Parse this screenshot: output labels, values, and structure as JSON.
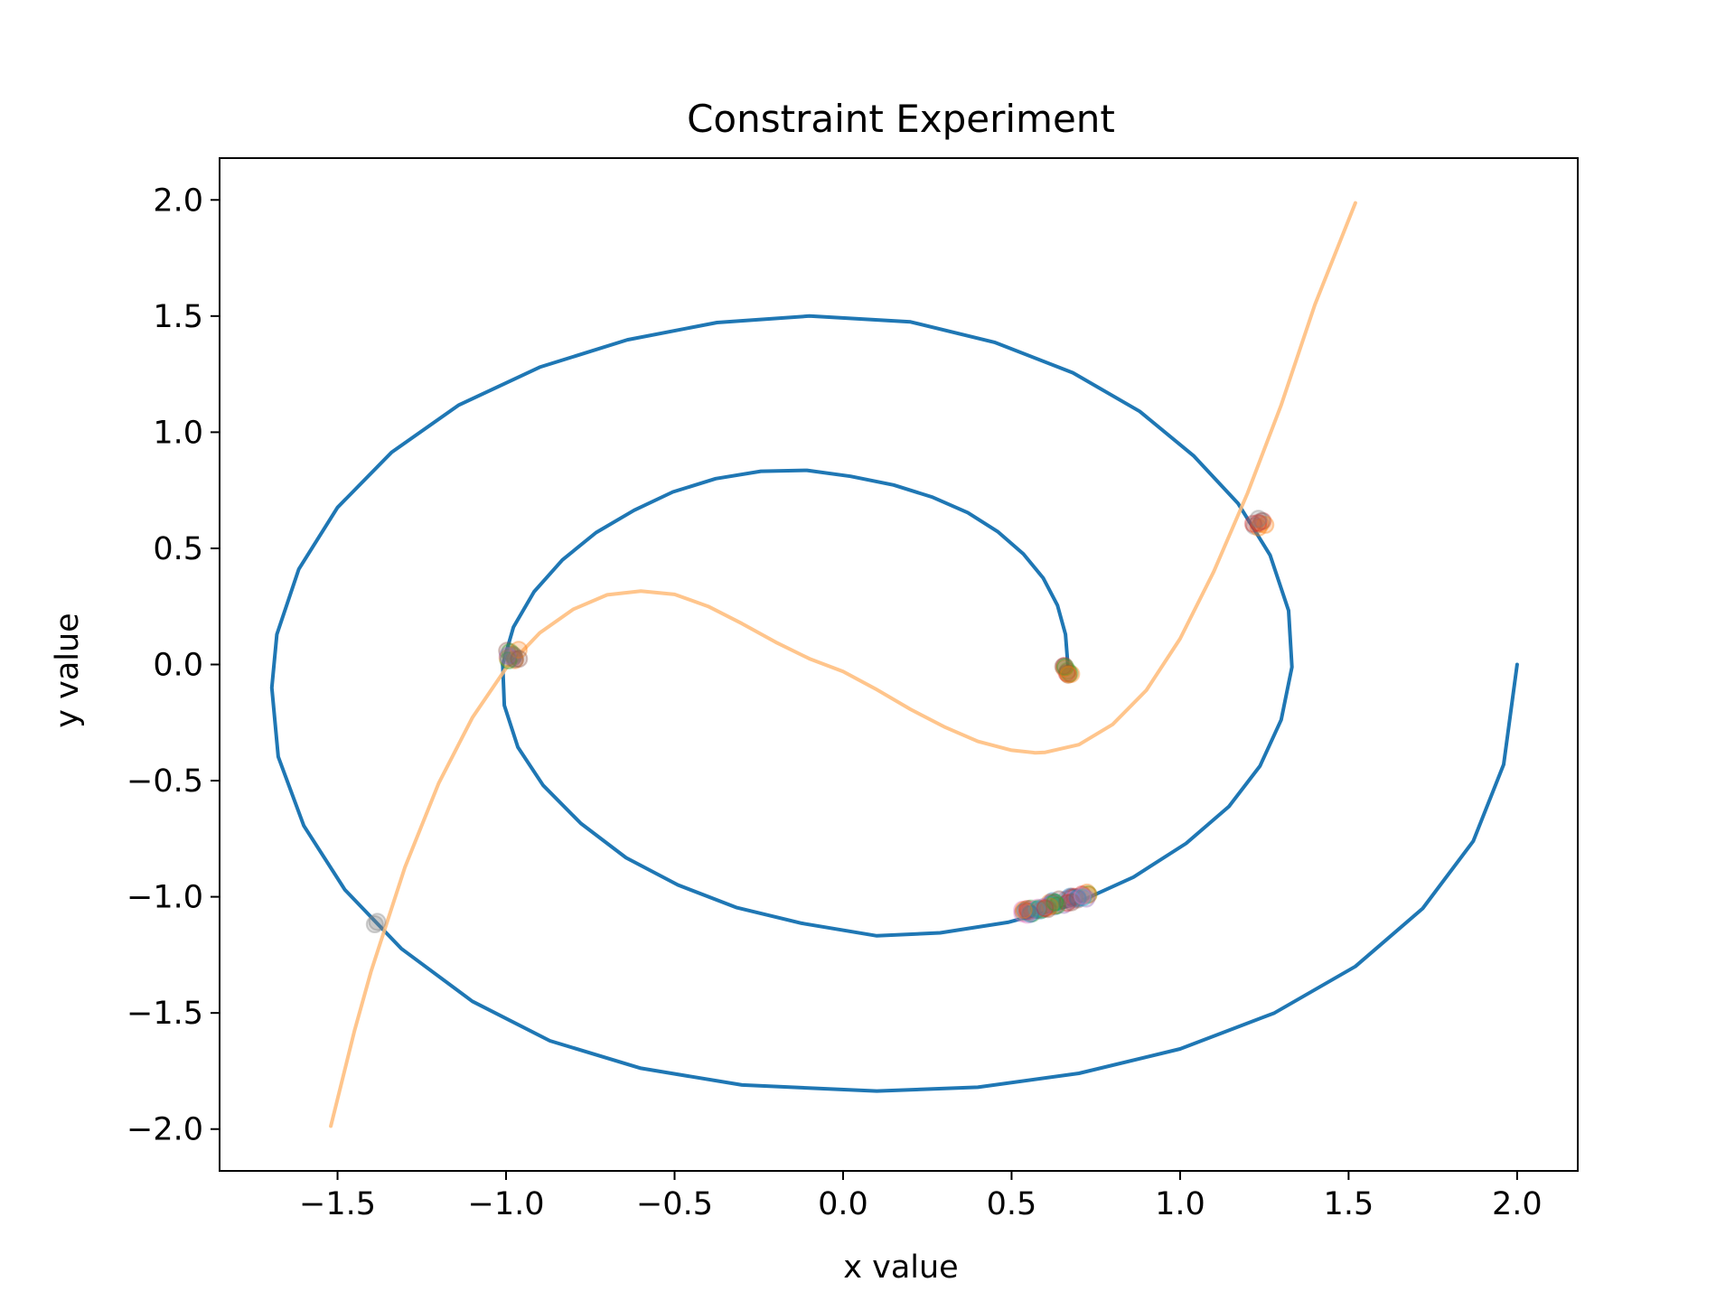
{
  "chart_data": {
    "type": "line",
    "title": "Constraint Experiment",
    "xlabel": "x value",
    "ylabel": "y value",
    "xlim": [
      -1.85,
      2.18
    ],
    "ylim": [
      -2.18,
      2.18
    ],
    "xticks": [
      -1.5,
      -1.0,
      -0.5,
      0.0,
      0.5,
      1.0,
      1.5,
      2.0
    ],
    "yticks": [
      -2.0,
      -1.5,
      -1.0,
      -0.5,
      0.0,
      0.5,
      1.0,
      1.5,
      2.0
    ],
    "xtick_labels": [
      "−1.5",
      "−1.0",
      "−0.5",
      "0.0",
      "0.5",
      "1.0",
      "1.5",
      "2.0"
    ],
    "ytick_labels": [
      "−2.0",
      "−1.5",
      "−1.0",
      "−0.5",
      "0.0",
      "0.5",
      "1.0",
      "1.5",
      "2.0"
    ],
    "grid": false,
    "legend": "none",
    "series": [
      {
        "kind": "spiral",
        "color": "#1f77b4",
        "points": [
          [
            0.667,
            0.0
          ],
          [
            0.66,
            0.13
          ],
          [
            0.636,
            0.255
          ],
          [
            0.594,
            0.372
          ],
          [
            0.535,
            0.476
          ],
          [
            0.46,
            0.571
          ],
          [
            0.37,
            0.654
          ],
          [
            0.266,
            0.72
          ],
          [
            0.15,
            0.773
          ],
          [
            0.022,
            0.81
          ],
          [
            -0.107,
            0.836
          ],
          [
            -0.244,
            0.832
          ],
          [
            -0.378,
            0.8
          ],
          [
            -0.505,
            0.743
          ],
          [
            -0.62,
            0.664
          ],
          [
            -0.733,
            0.568
          ],
          [
            -0.833,
            0.45
          ],
          [
            -0.917,
            0.313
          ],
          [
            -0.978,
            0.161
          ],
          [
            -1.01,
            0.0
          ],
          [
            -1.005,
            -0.176
          ],
          [
            -0.965,
            -0.356
          ],
          [
            -0.89,
            -0.52
          ],
          [
            -0.778,
            -0.684
          ],
          [
            -0.644,
            -0.832
          ],
          [
            -0.49,
            -0.949
          ],
          [
            -0.317,
            -1.046
          ],
          [
            -0.123,
            -1.114
          ],
          [
            0.1,
            -1.168
          ],
          [
            0.288,
            -1.155
          ],
          [
            0.489,
            -1.11
          ],
          [
            0.68,
            -1.035
          ],
          [
            0.862,
            -0.915
          ],
          [
            1.018,
            -0.77
          ],
          [
            1.145,
            -0.611
          ],
          [
            1.237,
            -0.437
          ],
          [
            1.3,
            -0.238
          ],
          [
            1.332,
            -0.011
          ],
          [
            1.322,
            0.232
          ],
          [
            1.267,
            0.471
          ],
          [
            1.172,
            0.693
          ],
          [
            1.04,
            0.899
          ],
          [
            0.88,
            1.09
          ],
          [
            0.682,
            1.256
          ],
          [
            0.451,
            1.386
          ],
          [
            0.2,
            1.475
          ],
          [
            -0.1,
            1.5
          ],
          [
            -0.374,
            1.472
          ],
          [
            -0.64,
            1.398
          ],
          [
            -0.9,
            1.28
          ],
          [
            -1.14,
            1.117
          ],
          [
            -1.34,
            0.913
          ],
          [
            -1.5,
            0.676
          ],
          [
            -1.615,
            0.41
          ],
          [
            -1.68,
            0.13
          ],
          [
            -1.695,
            -0.1
          ],
          [
            -1.676,
            -0.397
          ],
          [
            -1.6,
            -0.694
          ],
          [
            -1.478,
            -0.97
          ],
          [
            -1.31,
            -1.224
          ],
          [
            -1.1,
            -1.45
          ],
          [
            -0.87,
            -1.62
          ],
          [
            -0.6,
            -1.738
          ],
          [
            -0.3,
            -1.81
          ],
          [
            0.1,
            -1.836
          ],
          [
            0.4,
            -1.82
          ],
          [
            0.7,
            -1.76
          ],
          [
            1.0,
            -1.655
          ],
          [
            1.28,
            -1.5
          ],
          [
            1.52,
            -1.3
          ],
          [
            1.72,
            -1.05
          ],
          [
            1.87,
            -0.76
          ],
          [
            1.96,
            -0.43
          ],
          [
            2.0,
            0.0
          ]
        ]
      },
      {
        "kind": "curve",
        "color": "#ffbb78",
        "points": [
          [
            -1.52,
            -1.987
          ],
          [
            -1.45,
            -1.578
          ],
          [
            -1.4,
            -1.319
          ],
          [
            -1.3,
            -0.873
          ],
          [
            -1.2,
            -0.512
          ],
          [
            -1.1,
            -0.229
          ],
          [
            -1.0,
            -0.016
          ],
          [
            -0.9,
            0.136
          ],
          [
            -0.8,
            0.238
          ],
          [
            -0.7,
            0.3
          ],
          [
            -0.6,
            0.316
          ],
          [
            -0.5,
            0.302
          ],
          [
            -0.4,
            0.25
          ],
          [
            -0.3,
            0.176
          ],
          [
            -0.2,
            0.096
          ],
          [
            -0.1,
            0.025
          ],
          [
            0.0,
            -0.03
          ],
          [
            0.1,
            -0.108
          ],
          [
            0.2,
            -0.193
          ],
          [
            0.3,
            -0.268
          ],
          [
            0.4,
            -0.331
          ],
          [
            0.5,
            -0.369
          ],
          [
            0.57,
            -0.38
          ],
          [
            0.6,
            -0.378
          ],
          [
            0.7,
            -0.345
          ],
          [
            0.8,
            -0.258
          ],
          [
            0.9,
            -0.111
          ],
          [
            1.0,
            0.111
          ],
          [
            1.1,
            0.4
          ],
          [
            1.2,
            0.737
          ],
          [
            1.3,
            1.117
          ],
          [
            1.4,
            1.549
          ],
          [
            1.52,
            1.987
          ]
        ]
      }
    ],
    "scatter_clusters": [
      {
        "center": [
          -0.98,
          0.04
        ],
        "colors": [
          "#2ca02c",
          "#ff7f0e",
          "#9467bd",
          "#8c564b",
          "#7f7f7f"
        ],
        "count": 14
      },
      {
        "center": [
          0.67,
          -0.03
        ],
        "colors": [
          "#2ca02c",
          "#ff7f0e",
          "#d62728",
          "#8c564b"
        ],
        "count": 10
      },
      {
        "center": [
          1.235,
          0.61
        ],
        "colors": [
          "#ff7f0e",
          "#d62728",
          "#7f7f7f"
        ],
        "count": 9
      },
      {
        "center": [
          -1.38,
          -1.105
        ],
        "colors": [
          "#7f7f7f"
        ],
        "count": 2
      },
      {
        "center": [
          0.62,
          -1.04
        ],
        "colors": [
          "#1f77b4",
          "#ff7f0e",
          "#d62728",
          "#2ca02c",
          "#9467bd",
          "#8c564b",
          "#e377c2",
          "#17becf"
        ],
        "count": 60
      }
    ]
  }
}
